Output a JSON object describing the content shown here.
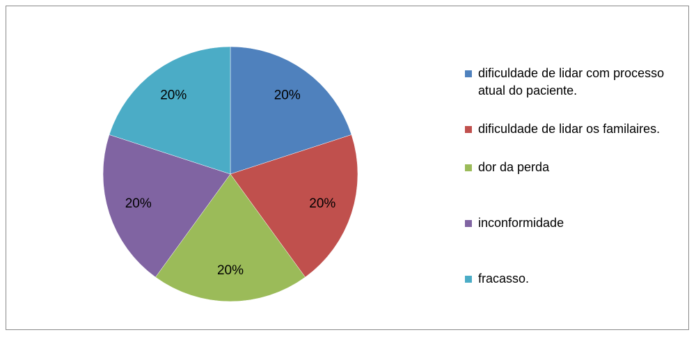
{
  "chart_data": {
    "type": "pie",
    "categories": [
      "dificuldade de lidar com processo atual do paciente.",
      "dificuldade de lidar os familaires.",
      "dor da perda",
      "inconformidade",
      "fracasso."
    ],
    "values": [
      20,
      20,
      20,
      20,
      20
    ],
    "value_labels": [
      "20%",
      "20%",
      "20%",
      "20%",
      "20%"
    ],
    "colors": [
      "#4f81bd",
      "#c0504d",
      "#9bbb59",
      "#8064a2",
      "#4bacc6"
    ],
    "legend": "right"
  }
}
